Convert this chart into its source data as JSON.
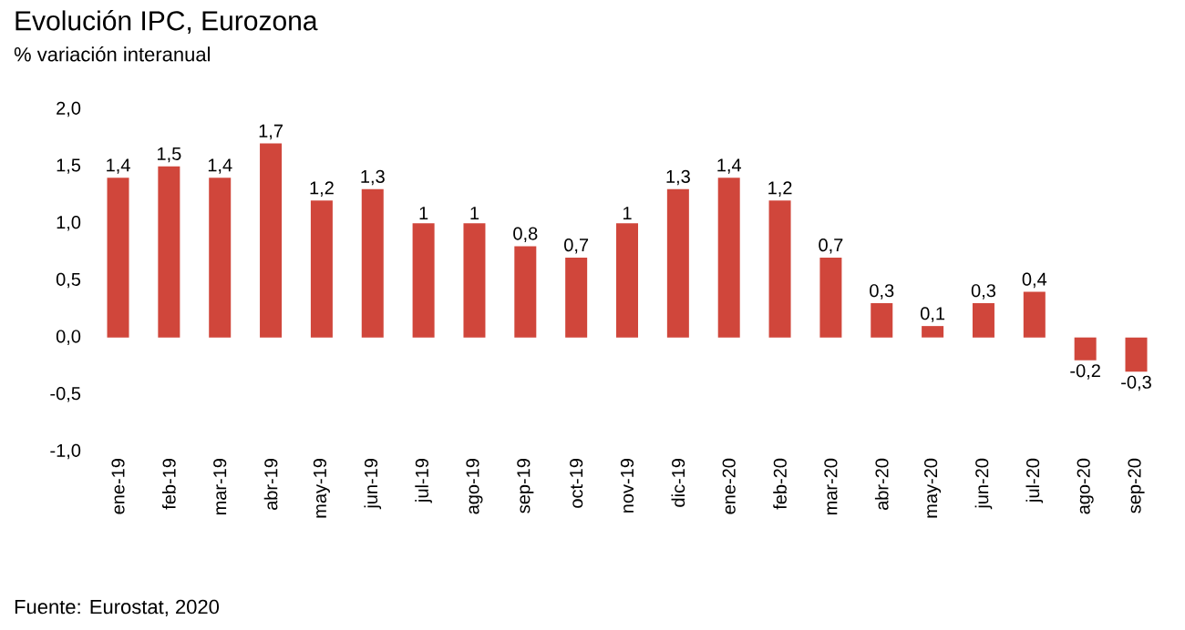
{
  "chart_data": {
    "type": "bar",
    "title": "Evolución IPC, Eurozona",
    "subtitle": "% variación interanual",
    "categories": [
      "ene-19",
      "feb-19",
      "mar-19",
      "abr-19",
      "may-19",
      "jun-19",
      "jul-19",
      "ago-19",
      "sep-19",
      "oct-19",
      "nov-19",
      "dic-19",
      "ene-20",
      "feb-20",
      "mar-20",
      "abr-20",
      "may-20",
      "jun-20",
      "jul-20",
      "ago-20",
      "sep-20"
    ],
    "values": [
      1.4,
      1.5,
      1.4,
      1.7,
      1.2,
      1.3,
      1,
      1,
      0.8,
      0.7,
      1,
      1.3,
      1.4,
      1.2,
      0.7,
      0.3,
      0.1,
      0.3,
      0.4,
      -0.2,
      -0.3
    ],
    "value_labels": [
      "1,4",
      "1,5",
      "1,4",
      "1,7",
      "1,2",
      "1,3",
      "1",
      "1",
      "0,8",
      "0,7",
      "1",
      "1,3",
      "1,4",
      "1,2",
      "0,7",
      "0,3",
      "0,1",
      "0,3",
      "0,4",
      "-0,2",
      "-0,3"
    ],
    "color": "#d0463b",
    "ylim": [
      -1.0,
      2.0
    ],
    "yticks": [
      {
        "value": -1.0,
        "label": "-1,0"
      },
      {
        "value": -0.5,
        "label": "-0,5"
      },
      {
        "value": 0.0,
        "label": "0,0"
      },
      {
        "value": 0.5,
        "label": "0,5"
      },
      {
        "value": 1.0,
        "label": "1,0"
      },
      {
        "value": 1.5,
        "label": "1,5"
      },
      {
        "value": 2.0,
        "label": "2,0"
      }
    ],
    "annotations": [
      "Fuente: Eurostat, 2020"
    ]
  }
}
